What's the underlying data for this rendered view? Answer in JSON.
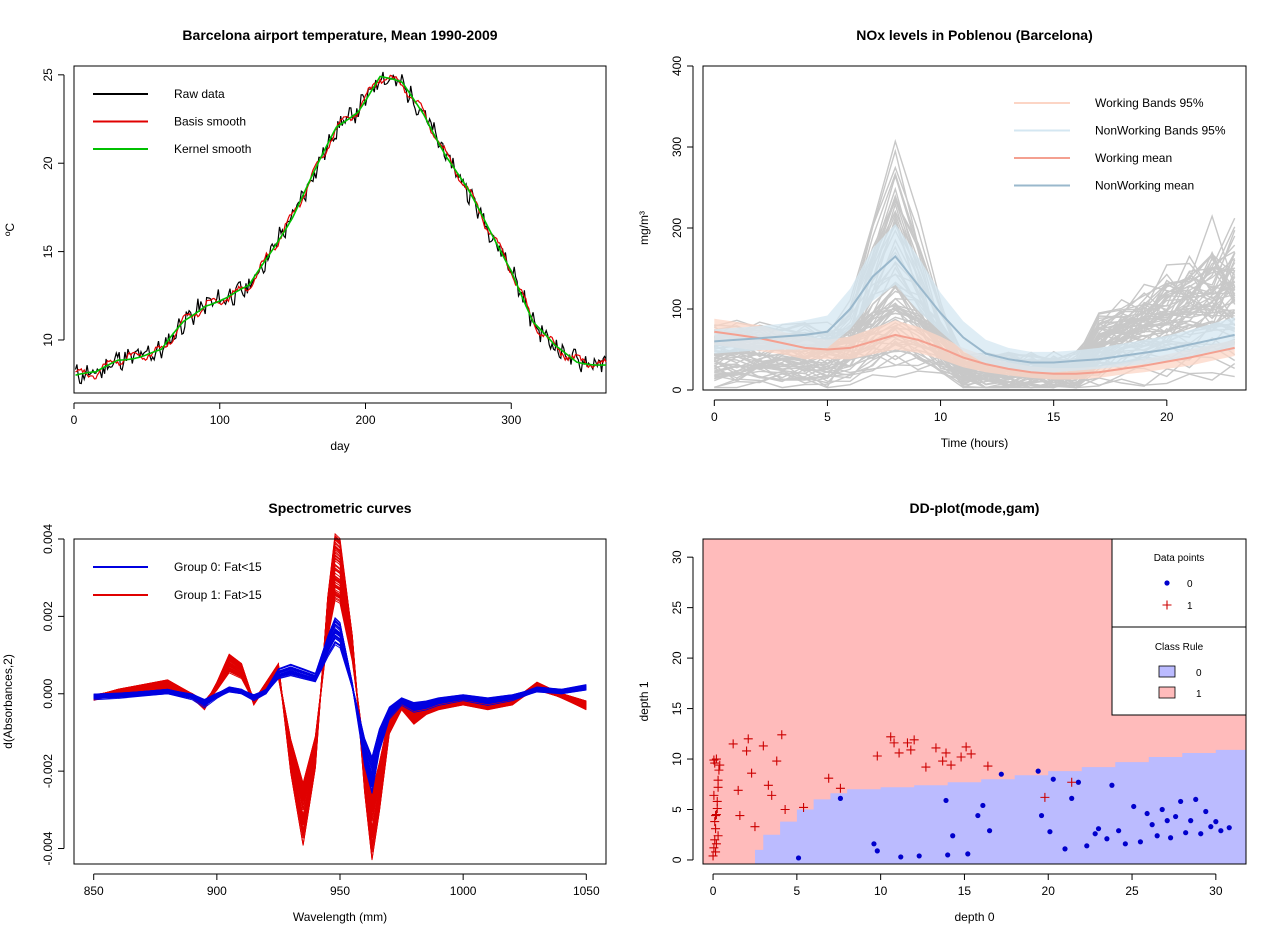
{
  "chart_data": [
    {
      "type": "line",
      "title": "Barcelona airport temperature, Mean 1990-2009",
      "xlabel": "day",
      "ylabel": "ºC",
      "xlim": [
        0,
        365
      ],
      "ylim": [
        7,
        25.5
      ],
      "xticks": [
        "0",
        "100",
        "200",
        "300"
      ],
      "yticks": [
        "10",
        "15",
        "20",
        "25"
      ],
      "legend": {
        "placement": "top-left",
        "entries": [
          "Raw data",
          "Basis smooth",
          "Kernel smooth"
        ],
        "colors": [
          "#000000",
          "#e00000",
          "#00c000"
        ]
      },
      "series": [
        {
          "name": "Raw data",
          "color": "#000000",
          "x": [
            1,
            15,
            30,
            45,
            60,
            75,
            90,
            105,
            120,
            135,
            150,
            165,
            180,
            195,
            210,
            225,
            240,
            255,
            270,
            285,
            300,
            315,
            330,
            345,
            365
          ],
          "values": [
            8.0,
            8.1,
            8.9,
            9.1,
            9.4,
            11.0,
            12.0,
            12.4,
            13.0,
            15.0,
            17.0,
            19.5,
            22.0,
            23.0,
            24.9,
            24.5,
            22.8,
            20.5,
            18.5,
            16.2,
            14.0,
            11.0,
            9.6,
            8.8,
            8.6
          ]
        },
        {
          "name": "Basis smooth",
          "color": "#e00000",
          "x": [
            1,
            15,
            30,
            45,
            60,
            75,
            90,
            105,
            120,
            135,
            150,
            165,
            180,
            195,
            210,
            225,
            240,
            255,
            270,
            285,
            300,
            315,
            330,
            345,
            365
          ],
          "values": [
            8.0,
            8.1,
            8.9,
            9.1,
            9.4,
            11.0,
            12.0,
            12.4,
            13.0,
            15.0,
            17.0,
            19.5,
            22.0,
            23.0,
            24.9,
            24.5,
            22.8,
            20.5,
            18.5,
            16.2,
            14.0,
            11.0,
            9.6,
            8.8,
            8.6
          ]
        },
        {
          "name": "Kernel smooth",
          "color": "#00c000",
          "x": [
            1,
            15,
            30,
            45,
            60,
            75,
            90,
            105,
            120,
            135,
            150,
            165,
            180,
            195,
            210,
            225,
            240,
            255,
            270,
            285,
            300,
            315,
            330,
            345,
            365
          ],
          "values": [
            8.0,
            8.1,
            8.9,
            9.1,
            9.4,
            11.0,
            12.0,
            12.4,
            13.0,
            15.0,
            17.0,
            19.5,
            22.0,
            23.0,
            24.9,
            24.5,
            22.8,
            20.5,
            18.5,
            16.2,
            14.0,
            11.0,
            9.6,
            8.8,
            8.6
          ]
        }
      ]
    },
    {
      "type": "line",
      "title": "NOx levels in Poblenou (Barcelona)",
      "xlabel": "Time (hours)",
      "ylabel": "mg/m³",
      "xlim": [
        -0.5,
        23.5
      ],
      "ylim": [
        0,
        400
      ],
      "xticks": [
        "0",
        "5",
        "10",
        "15",
        "20"
      ],
      "yticks": [
        "0",
        "100",
        "200",
        "300",
        "400"
      ],
      "legend": {
        "placement": "top-right",
        "entries": [
          "Working Bands 95%",
          "NonWorking Bands 95%",
          "Working mean",
          "NonWorking mean"
        ],
        "colors": [
          "#fcd5c5",
          "#d4e7f2",
          "#f4a090",
          "#9ab8cc"
        ]
      },
      "x": [
        0,
        1,
        2,
        3,
        4,
        5,
        6,
        7,
        8,
        9,
        10,
        11,
        12,
        13,
        14,
        15,
        16,
        17,
        18,
        19,
        20,
        21,
        22,
        23
      ],
      "series": [
        {
          "name": "Working mean",
          "color": "#f4a090",
          "values": [
            72,
            68,
            64,
            58,
            52,
            50,
            52,
            60,
            68,
            62,
            52,
            40,
            32,
            26,
            22,
            20,
            20,
            22,
            26,
            30,
            35,
            40,
            46,
            52
          ]
        },
        {
          "name": "Working band upper",
          "color": "#fcd5c5",
          "values": [
            88,
            84,
            80,
            72,
            66,
            62,
            66,
            76,
            86,
            78,
            66,
            52,
            42,
            34,
            29,
            27,
            27,
            29,
            33,
            38,
            44,
            50,
            56,
            62
          ]
        },
        {
          "name": "Working band lower",
          "color": "#fcd5c5",
          "values": [
            56,
            52,
            48,
            44,
            38,
            38,
            38,
            44,
            50,
            46,
            38,
            28,
            22,
            18,
            15,
            13,
            13,
            15,
            19,
            22,
            26,
            30,
            36,
            42
          ]
        },
        {
          "name": "NonWorking mean",
          "color": "#9ab8cc",
          "values": [
            60,
            62,
            64,
            66,
            68,
            72,
            100,
            140,
            165,
            130,
            95,
            65,
            45,
            38,
            34,
            34,
            36,
            38,
            42,
            46,
            50,
            56,
            62,
            68
          ]
        },
        {
          "name": "NonWorking band upper",
          "color": "#d4e7f2",
          "values": [
            75,
            77,
            79,
            82,
            86,
            92,
            125,
            175,
            205,
            165,
            120,
            85,
            62,
            52,
            47,
            47,
            49,
            52,
            57,
            62,
            67,
            74,
            82,
            90
          ]
        },
        {
          "name": "NonWorking band lower",
          "color": "#d4e7f2",
          "values": [
            45,
            47,
            49,
            50,
            50,
            52,
            75,
            110,
            130,
            98,
            72,
            48,
            32,
            26,
            22,
            22,
            24,
            26,
            29,
            32,
            35,
            40,
            45,
            50
          ]
        }
      ]
    },
    {
      "type": "line",
      "title": "Spectrometric curves",
      "xlabel": "Wavelength (mm)",
      "ylabel": "d(Absorbances,2)",
      "xlim": [
        842,
        1058
      ],
      "ylim": [
        -0.0044,
        0.004
      ],
      "xticks": [
        "850",
        "900",
        "950",
        "1000",
        "1050"
      ],
      "yticks": [
        "-0.004",
        "-0.002",
        "0.000",
        "0.002",
        "0.004"
      ],
      "legend": {
        "placement": "top-left",
        "entries": [
          "Group 0: Fat<15",
          "Group 1: Fat>15"
        ],
        "colors": [
          "#0000e0",
          "#e00000"
        ]
      },
      "x": [
        850,
        860,
        870,
        880,
        890,
        895,
        900,
        905,
        910,
        915,
        920,
        925,
        930,
        935,
        940,
        945,
        948,
        950,
        955,
        960,
        963,
        966,
        970,
        975,
        980,
        985,
        990,
        1000,
        1010,
        1020,
        1030,
        1040,
        1050
      ],
      "series": [
        {
          "name": "Group 0: Fat<15",
          "color": "#0000e0",
          "values": [
            -8e-05,
            -5e-05,
            0.0,
            5e-05,
            -8e-05,
            -0.00025,
            -5e-05,
            0.0001,
            5e-05,
            -0.0001,
            5e-05,
            0.0005,
            0.0006,
            0.0005,
            0.0004,
            0.0012,
            0.0016,
            0.0015,
            0.0002,
            -0.0015,
            -0.0021,
            -0.0012,
            -0.0005,
            -0.0002,
            -0.00035,
            -0.0003,
            -0.0002,
            -0.0001,
            -0.0002,
            -0.0001,
            0.0001,
            5e-05,
            0.00015
          ]
        },
        {
          "name": "Group 1: Fat>15",
          "color": "#e00000",
          "values": [
            -0.0001,
            5e-05,
            0.00015,
            0.00025,
            -5e-05,
            -0.0003,
            0.0002,
            0.0008,
            0.0006,
            -0.0002,
            0.0002,
            0.0006,
            -0.0016,
            -0.0031,
            -0.0015,
            0.002,
            0.0033,
            0.0032,
            0.0012,
            -0.002,
            -0.0034,
            -0.0024,
            -0.0008,
            -0.0003,
            -0.0006,
            -0.0004,
            -0.0003,
            -0.0002,
            -0.0003,
            -0.0002,
            0.0002,
            -5e-05,
            -0.0003
          ]
        }
      ]
    },
    {
      "type": "scatter",
      "title": "DD-plot(mode,gam)",
      "xlabel": "depth 0",
      "ylabel": "depth 1",
      "xlim": [
        -0.6,
        31.8
      ],
      "ylim": [
        -0.4,
        31.8
      ],
      "xticks": [
        "0",
        "5",
        "10",
        "15",
        "20",
        "25",
        "30"
      ],
      "yticks": [
        "0",
        "5",
        "10",
        "15",
        "20",
        "25",
        "30"
      ],
      "legend_points": {
        "title": "Data points",
        "entries": [
          "0",
          "1"
        ],
        "colors": [
          "#0000cc",
          "#cc0000"
        ]
      },
      "legend_rule": {
        "title": "Class Rule",
        "entries": [
          "0",
          "1"
        ],
        "colors": [
          "#bbbbff",
          "#ffbbbb"
        ]
      },
      "boundary": {
        "x": [
          2.5,
          3,
          4,
          5,
          6,
          7,
          8,
          10,
          12,
          14,
          16,
          18,
          20,
          22,
          24,
          26,
          28,
          30,
          31.8
        ],
        "y": [
          0,
          1,
          2.5,
          3.8,
          5,
          6,
          6.6,
          7.0,
          7.2,
          7.4,
          7.7,
          8.0,
          8.4,
          8.8,
          9.2,
          9.7,
          10.2,
          10.6,
          10.9
        ]
      },
      "series": [
        {
          "name": "0",
          "color": "#0000cc",
          "x": [
            5.1,
            7.6,
            9.6,
            9.8,
            11.2,
            12.3,
            13.9,
            14.0,
            14.3,
            15.2,
            15.8,
            16.1,
            16.5,
            17.2,
            19.4,
            19.6,
            20.1,
            20.3,
            21.0,
            21.4,
            21.8,
            22.3,
            22.8,
            23.0,
            23.5,
            23.8,
            24.2,
            24.6,
            25.1,
            25.5,
            25.9,
            26.2,
            26.5,
            26.8,
            27.1,
            27.3,
            27.6,
            27.9,
            28.2,
            28.5,
            28.8,
            29.1,
            29.4,
            29.7,
            30.0,
            30.3,
            30.8
          ],
          "values": [
            0.2,
            6.1,
            1.6,
            0.9,
            0.3,
            0.4,
            5.9,
            0.5,
            2.4,
            0.6,
            4.4,
            5.4,
            2.9,
            8.5,
            8.8,
            4.4,
            2.8,
            8.0,
            1.1,
            6.1,
            7.7,
            1.4,
            2.6,
            3.1,
            2.1,
            7.4,
            2.9,
            1.6,
            5.3,
            1.8,
            4.6,
            3.5,
            2.4,
            5.0,
            3.9,
            2.2,
            4.3,
            5.8,
            2.7,
            3.9,
            6.0,
            2.6,
            4.8,
            3.3,
            3.8,
            2.9,
            3.2
          ]
        },
        {
          "name": "1",
          "color": "#cc0000",
          "x": [
            0.0,
            0.05,
            0.1,
            0.15,
            0.2,
            0.25,
            0.3,
            0.35,
            0.1,
            0.2,
            0.05,
            0.3,
            0.15,
            0.25,
            0.4,
            0.1,
            0.2,
            0.3,
            0.05,
            0.15,
            1.2,
            1.5,
            1.6,
            2.0,
            2.1,
            2.3,
            2.5,
            3.0,
            3.3,
            3.5,
            3.8,
            4.1,
            4.3,
            5.4,
            6.9,
            7.6,
            9.8,
            10.6,
            10.8,
            11.1,
            11.6,
            11.8,
            12.0,
            12.7,
            13.3,
            13.7,
            13.9,
            14.2,
            14.8,
            15.1,
            15.4,
            16.4,
            19.8,
            21.4
          ],
          "values": [
            0.4,
            1.2,
            2.0,
            3.1,
            4.5,
            5.8,
            7.2,
            8.9,
            9.6,
            10.0,
            6.4,
            2.4,
            0.8,
            5.1,
            9.4,
            3.8,
            1.6,
            7.9,
            9.9,
            4.4,
            11.5,
            6.9,
            4.4,
            10.8,
            12.0,
            8.6,
            3.3,
            11.3,
            7.4,
            6.4,
            9.8,
            12.4,
            5.0,
            5.2,
            8.1,
            7.1,
            10.3,
            12.2,
            11.6,
            10.6,
            11.6,
            10.9,
            11.9,
            9.2,
            11.1,
            9.8,
            10.6,
            9.4,
            10.2,
            11.2,
            10.5,
            9.3,
            6.2,
            7.7
          ]
        }
      ]
    }
  ]
}
